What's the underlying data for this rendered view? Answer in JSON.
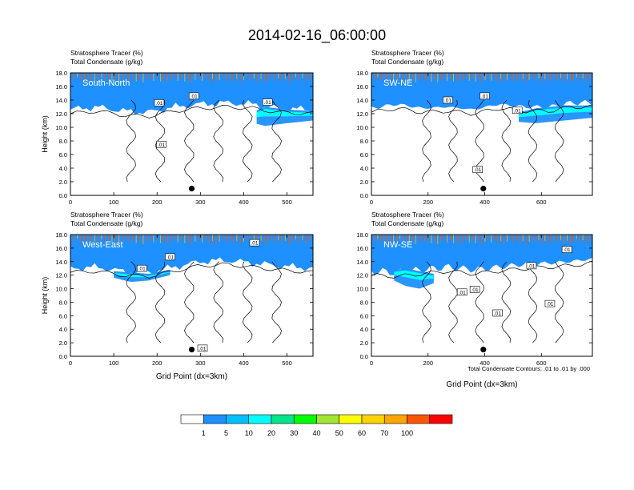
{
  "title": "2014-02-16_06:00:00",
  "colors": {
    "levels": [
      "#ffffff",
      "#1e90ff",
      "#00bfff",
      "#00ffff",
      "#00e58c",
      "#00ff00",
      "#a0e632",
      "#ffff00",
      "#ffd200",
      "#ffa500",
      "#ff5500",
      "#ff0000"
    ]
  },
  "colorbar": {
    "labels": [
      "1",
      "5",
      "10",
      "20",
      "30",
      "40",
      "50",
      "60",
      "70",
      "100"
    ]
  },
  "contour_note": "Total Condensate Contours: .01 to .01 by .000",
  "contour_label": ".01",
  "chart_data": [
    {
      "type": "area",
      "panel_label": "South-North",
      "subtitle_lines": [
        "Stratosphere Tracer   (%)",
        "Total Condensate   (g/kg)"
      ],
      "ylabel": "Height (km)",
      "xlabel": "",
      "xlim": [
        0,
        560
      ],
      "ylim": [
        0,
        18
      ],
      "xticks": [
        0,
        100,
        200,
        300,
        400,
        500
      ],
      "yticks": [
        "0.0",
        "2.0",
        "4.0",
        "6.0",
        "8.0",
        "10.0",
        "12.0",
        "14.0",
        "16.0",
        "18.0"
      ],
      "marker": {
        "x": 280,
        "y": 1.0
      },
      "bands": {
        "x": [
          0,
          60,
          120,
          180,
          240,
          300,
          360,
          420,
          480,
          560
        ],
        "base": [
          12.6,
          13.0,
          12.4,
          12.2,
          13.0,
          13.4,
          13.6,
          13.4,
          12.8,
          12.6
        ],
        "thick": [
          0.6,
          0.5,
          0.5,
          0.4,
          0.5,
          0.6,
          0.5,
          0.5,
          0.5,
          0.5
        ]
      },
      "cloud": {
        "x": [
          430,
          450,
          500,
          560
        ],
        "top": [
          12.5,
          13.0,
          12.6,
          12.4
        ],
        "bottom": [
          10.5,
          10.2,
          10.6,
          11.0
        ]
      },
      "contour_labels": [
        {
          "x": 205,
          "y": 13.6
        },
        {
          "x": 285,
          "y": 14.6
        },
        {
          "x": 455,
          "y": 13.7
        },
        {
          "x": 210,
          "y": 7.5
        }
      ]
    },
    {
      "type": "area",
      "panel_label": "SW-NE",
      "subtitle_lines": [
        "Stratosphere Tracer   (%)",
        "Total Condensate   (g/kg)"
      ],
      "ylabel": "",
      "xlabel": "",
      "xlim": [
        0,
        780
      ],
      "ylim": [
        0,
        18
      ],
      "xticks": [
        0,
        200,
        400,
        600
      ],
      "yticks": [
        "0.0",
        "2.0",
        "4.0",
        "6.0",
        "8.0",
        "10.0",
        "12.0",
        "14.0",
        "16.0",
        "18.0"
      ],
      "marker": {
        "x": 395,
        "y": 1.0
      },
      "bands": {
        "x": [
          0,
          90,
          180,
          270,
          360,
          450,
          540,
          630,
          700,
          780
        ],
        "base": [
          12.8,
          13.4,
          12.8,
          13.0,
          12.6,
          13.4,
          13.0,
          13.0,
          13.6,
          13.6
        ],
        "thick": [
          0.5,
          0.5,
          0.5,
          0.5,
          0.5,
          0.5,
          0.5,
          0.5,
          0.5,
          0.5
        ]
      },
      "cloud": {
        "x": [
          520,
          580,
          680,
          780
        ],
        "top": [
          12.2,
          12.8,
          13.2,
          13.2
        ],
        "bottom": [
          10.8,
          10.6,
          11.0,
          11.4
        ]
      },
      "contour_labels": [
        {
          "x": 270,
          "y": 14.0
        },
        {
          "x": 400,
          "y": 14.6
        },
        {
          "x": 515,
          "y": 12.5
        },
        {
          "x": 375,
          "y": 3.8
        }
      ]
    },
    {
      "type": "area",
      "panel_label": "West-East",
      "subtitle_lines": [
        "Stratosphere Tracer   (%)",
        "Total Condensate   (g/kg)"
      ],
      "ylabel": "Height (km)",
      "xlabel": "Grid Point (dx=3km)",
      "xlim": [
        0,
        560
      ],
      "ylim": [
        0,
        18
      ],
      "xticks": [
        0,
        100,
        200,
        300,
        400,
        500
      ],
      "yticks": [
        "0.0",
        "2.0",
        "4.0",
        "6.0",
        "8.0",
        "10.0",
        "12.0",
        "14.0",
        "16.0",
        "18.0"
      ],
      "marker": {
        "x": 280,
        "y": 1.0
      },
      "bands": {
        "x": [
          0,
          60,
          120,
          180,
          240,
          300,
          360,
          420,
          480,
          560
        ],
        "base": [
          13.0,
          13.2,
          12.6,
          12.4,
          13.2,
          14.0,
          14.2,
          13.8,
          13.4,
          13.0
        ],
        "thick": [
          0.5,
          0.5,
          0.5,
          0.5,
          0.5,
          0.5,
          0.5,
          0.5,
          0.5,
          0.5
        ]
      },
      "cloud": {
        "x": [
          100,
          140,
          180,
          230
        ],
        "top": [
          12.6,
          12.4,
          12.2,
          12.8
        ],
        "bottom": [
          11.6,
          11.0,
          11.2,
          12.0
        ]
      },
      "contour_labels": [
        {
          "x": 165,
          "y": 13.0
        },
        {
          "x": 230,
          "y": 14.7
        },
        {
          "x": 425,
          "y": 16.8
        },
        {
          "x": 305,
          "y": 1.2
        }
      ]
    },
    {
      "type": "area",
      "panel_label": "NW-SE",
      "subtitle_lines": [
        "Stratosphere Tracer   (%)",
        "Total Condensate   (g/kg)"
      ],
      "ylabel": "",
      "xlabel": "Grid Point (dx=3km)",
      "xlim": [
        0,
        780
      ],
      "ylim": [
        0,
        18
      ],
      "xticks": [
        0,
        200,
        400,
        600
      ],
      "yticks": [
        "0.0",
        "2.0",
        "4.0",
        "6.0",
        "8.0",
        "10.0",
        "12.0",
        "14.0",
        "16.0",
        "18.0"
      ],
      "marker": {
        "x": 395,
        "y": 1.0
      },
      "bands": {
        "x": [
          0,
          90,
          180,
          270,
          360,
          450,
          540,
          630,
          700,
          780
        ],
        "base": [
          12.6,
          12.4,
          12.8,
          13.2,
          12.8,
          13.2,
          13.6,
          13.8,
          14.0,
          14.4
        ],
        "thick": [
          0.5,
          0.5,
          0.5,
          0.5,
          0.5,
          0.5,
          0.5,
          0.5,
          0.5,
          0.5
        ]
      },
      "cloud": {
        "x": [
          80,
          120,
          170,
          220
        ],
        "top": [
          12.8,
          13.0,
          12.6,
          12.2
        ],
        "bottom": [
          11.2,
          10.4,
          10.0,
          10.8
        ]
      },
      "contour_labels": [
        {
          "x": 320,
          "y": 9.5
        },
        {
          "x": 365,
          "y": 9.9
        },
        {
          "x": 445,
          "y": 6.4
        },
        {
          "x": 565,
          "y": 13.4
        },
        {
          "x": 630,
          "y": 7.8
        },
        {
          "x": 690,
          "y": 15.8
        }
      ]
    }
  ]
}
